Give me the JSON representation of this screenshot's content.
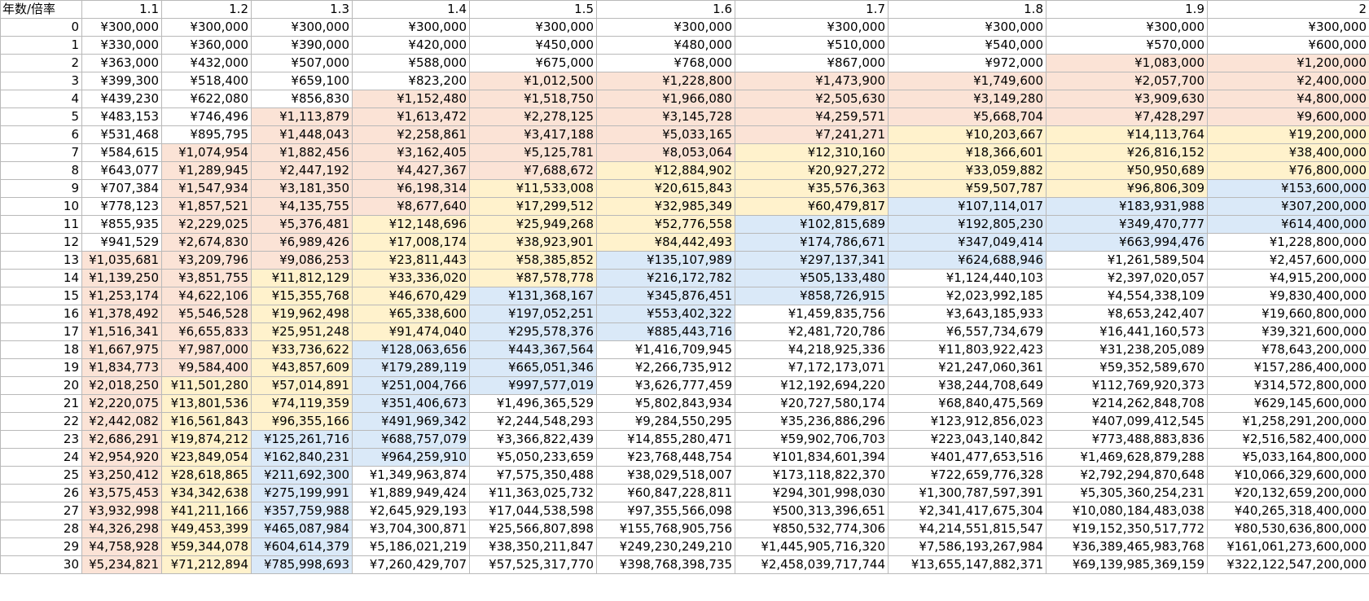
{
  "table": {
    "corner_label": "年数/倍率",
    "column_headers": [
      "1.1",
      "1.2",
      "1.3",
      "1.4",
      "1.5",
      "1.6",
      "1.7",
      "1.8",
      "1.9",
      "2"
    ],
    "highlight_colors": {
      "s": "#fbe3d6",
      "y": "#fff2cc",
      "b": "#dae9f8"
    },
    "rows": [
      {
        "year": "0",
        "cells": [
          "¥300,000",
          "¥300,000",
          "¥300,000",
          "¥300,000",
          "¥300,000",
          "¥300,000",
          "¥300,000",
          "¥300,000",
          "¥300,000",
          "¥300,000"
        ],
        "hl": [
          "",
          "",
          "",
          "",
          "",
          "",
          "",
          "",
          "",
          ""
        ]
      },
      {
        "year": "1",
        "cells": [
          "¥330,000",
          "¥360,000",
          "¥390,000",
          "¥420,000",
          "¥450,000",
          "¥480,000",
          "¥510,000",
          "¥540,000",
          "¥570,000",
          "¥600,000"
        ],
        "hl": [
          "",
          "",
          "",
          "",
          "",
          "",
          "",
          "",
          "",
          ""
        ]
      },
      {
        "year": "2",
        "cells": [
          "¥363,000",
          "¥432,000",
          "¥507,000",
          "¥588,000",
          "¥675,000",
          "¥768,000",
          "¥867,000",
          "¥972,000",
          "¥1,083,000",
          "¥1,200,000"
        ],
        "hl": [
          "",
          "",
          "",
          "",
          "",
          "",
          "",
          "",
          "s",
          "s"
        ]
      },
      {
        "year": "3",
        "cells": [
          "¥399,300",
          "¥518,400",
          "¥659,100",
          "¥823,200",
          "¥1,012,500",
          "¥1,228,800",
          "¥1,473,900",
          "¥1,749,600",
          "¥2,057,700",
          "¥2,400,000"
        ],
        "hl": [
          "",
          "",
          "",
          "",
          "s",
          "s",
          "s",
          "s",
          "s",
          "s"
        ]
      },
      {
        "year": "4",
        "cells": [
          "¥439,230",
          "¥622,080",
          "¥856,830",
          "¥1,152,480",
          "¥1,518,750",
          "¥1,966,080",
          "¥2,505,630",
          "¥3,149,280",
          "¥3,909,630",
          "¥4,800,000"
        ],
        "hl": [
          "",
          "",
          "",
          "s",
          "s",
          "s",
          "s",
          "s",
          "s",
          "s"
        ]
      },
      {
        "year": "5",
        "cells": [
          "¥483,153",
          "¥746,496",
          "¥1,113,879",
          "¥1,613,472",
          "¥2,278,125",
          "¥3,145,728",
          "¥4,259,571",
          "¥5,668,704",
          "¥7,428,297",
          "¥9,600,000"
        ],
        "hl": [
          "",
          "",
          "s",
          "s",
          "s",
          "s",
          "s",
          "s",
          "s",
          "s"
        ]
      },
      {
        "year": "6",
        "cells": [
          "¥531,468",
          "¥895,795",
          "¥1,448,043",
          "¥2,258,861",
          "¥3,417,188",
          "¥5,033,165",
          "¥7,241,271",
          "¥10,203,667",
          "¥14,113,764",
          "¥19,200,000"
        ],
        "hl": [
          "",
          "",
          "s",
          "s",
          "s",
          "s",
          "s",
          "y",
          "y",
          "y"
        ]
      },
      {
        "year": "7",
        "cells": [
          "¥584,615",
          "¥1,074,954",
          "¥1,882,456",
          "¥3,162,405",
          "¥5,125,781",
          "¥8,053,064",
          "¥12,310,160",
          "¥18,366,601",
          "¥26,816,152",
          "¥38,400,000"
        ],
        "hl": [
          "",
          "s",
          "s",
          "s",
          "s",
          "s",
          "y",
          "y",
          "y",
          "y"
        ]
      },
      {
        "year": "8",
        "cells": [
          "¥643,077",
          "¥1,289,945",
          "¥2,447,192",
          "¥4,427,367",
          "¥7,688,672",
          "¥12,884,902",
          "¥20,927,272",
          "¥33,059,882",
          "¥50,950,689",
          "¥76,800,000"
        ],
        "hl": [
          "",
          "s",
          "s",
          "s",
          "s",
          "y",
          "y",
          "y",
          "y",
          "y"
        ]
      },
      {
        "year": "9",
        "cells": [
          "¥707,384",
          "¥1,547,934",
          "¥3,181,350",
          "¥6,198,314",
          "¥11,533,008",
          "¥20,615,843",
          "¥35,576,363",
          "¥59,507,787",
          "¥96,806,309",
          "¥153,600,000"
        ],
        "hl": [
          "",
          "s",
          "s",
          "s",
          "y",
          "y",
          "y",
          "y",
          "y",
          "b"
        ]
      },
      {
        "year": "10",
        "cells": [
          "¥778,123",
          "¥1,857,521",
          "¥4,135,755",
          "¥8,677,640",
          "¥17,299,512",
          "¥32,985,349",
          "¥60,479,817",
          "¥107,114,017",
          "¥183,931,988",
          "¥307,200,000"
        ],
        "hl": [
          "",
          "s",
          "s",
          "s",
          "y",
          "y",
          "y",
          "b",
          "b",
          "b"
        ]
      },
      {
        "year": "11",
        "cells": [
          "¥855,935",
          "¥2,229,025",
          "¥5,376,481",
          "¥12,148,696",
          "¥25,949,268",
          "¥52,776,558",
          "¥102,815,689",
          "¥192,805,230",
          "¥349,470,777",
          "¥614,400,000"
        ],
        "hl": [
          "",
          "s",
          "s",
          "y",
          "y",
          "y",
          "b",
          "b",
          "b",
          "b"
        ]
      },
      {
        "year": "12",
        "cells": [
          "¥941,529",
          "¥2,674,830",
          "¥6,989,426",
          "¥17,008,174",
          "¥38,923,901",
          "¥84,442,493",
          "¥174,786,671",
          "¥347,049,414",
          "¥663,994,476",
          "¥1,228,800,000"
        ],
        "hl": [
          "",
          "s",
          "s",
          "y",
          "y",
          "y",
          "b",
          "b",
          "b",
          ""
        ]
      },
      {
        "year": "13",
        "cells": [
          "¥1,035,681",
          "¥3,209,796",
          "¥9,086,253",
          "¥23,811,443",
          "¥58,385,852",
          "¥135,107,989",
          "¥297,137,341",
          "¥624,688,946",
          "¥1,261,589,504",
          "¥2,457,600,000"
        ],
        "hl": [
          "s",
          "s",
          "s",
          "y",
          "y",
          "b",
          "b",
          "b",
          "",
          ""
        ]
      },
      {
        "year": "14",
        "cells": [
          "¥1,139,250",
          "¥3,851,755",
          "¥11,812,129",
          "¥33,336,020",
          "¥87,578,778",
          "¥216,172,782",
          "¥505,133,480",
          "¥1,124,440,103",
          "¥2,397,020,057",
          "¥4,915,200,000"
        ],
        "hl": [
          "s",
          "s",
          "y",
          "y",
          "y",
          "b",
          "b",
          "",
          "",
          ""
        ]
      },
      {
        "year": "15",
        "cells": [
          "¥1,253,174",
          "¥4,622,106",
          "¥15,355,768",
          "¥46,670,429",
          "¥131,368,167",
          "¥345,876,451",
          "¥858,726,915",
          "¥2,023,992,185",
          "¥4,554,338,109",
          "¥9,830,400,000"
        ],
        "hl": [
          "s",
          "s",
          "y",
          "y",
          "b",
          "b",
          "b",
          "",
          "",
          ""
        ]
      },
      {
        "year": "16",
        "cells": [
          "¥1,378,492",
          "¥5,546,528",
          "¥19,962,498",
          "¥65,338,600",
          "¥197,052,251",
          "¥553,402,322",
          "¥1,459,835,756",
          "¥3,643,185,933",
          "¥8,653,242,407",
          "¥19,660,800,000"
        ],
        "hl": [
          "s",
          "s",
          "y",
          "y",
          "b",
          "b",
          "",
          "",
          "",
          ""
        ]
      },
      {
        "year": "17",
        "cells": [
          "¥1,516,341",
          "¥6,655,833",
          "¥25,951,248",
          "¥91,474,040",
          "¥295,578,376",
          "¥885,443,716",
          "¥2,481,720,786",
          "¥6,557,734,679",
          "¥16,441,160,573",
          "¥39,321,600,000"
        ],
        "hl": [
          "s",
          "s",
          "y",
          "y",
          "b",
          "b",
          "",
          "",
          "",
          ""
        ]
      },
      {
        "year": "18",
        "cells": [
          "¥1,667,975",
          "¥7,987,000",
          "¥33,736,622",
          "¥128,063,656",
          "¥443,367,564",
          "¥1,416,709,945",
          "¥4,218,925,336",
          "¥11,803,922,423",
          "¥31,238,205,089",
          "¥78,643,200,000"
        ],
        "hl": [
          "s",
          "s",
          "y",
          "b",
          "b",
          "",
          "",
          "",
          "",
          ""
        ]
      },
      {
        "year": "19",
        "cells": [
          "¥1,834,773",
          "¥9,584,400",
          "¥43,857,609",
          "¥179,289,119",
          "¥665,051,346",
          "¥2,266,735,912",
          "¥7,172,173,071",
          "¥21,247,060,361",
          "¥59,352,589,670",
          "¥157,286,400,000"
        ],
        "hl": [
          "s",
          "s",
          "y",
          "b",
          "b",
          "",
          "",
          "",
          "",
          ""
        ]
      },
      {
        "year": "20",
        "cells": [
          "¥2,018,250",
          "¥11,501,280",
          "¥57,014,891",
          "¥251,004,766",
          "¥997,577,019",
          "¥3,626,777,459",
          "¥12,192,694,220",
          "¥38,244,708,649",
          "¥112,769,920,373",
          "¥314,572,800,000"
        ],
        "hl": [
          "s",
          "y",
          "y",
          "b",
          "b",
          "",
          "",
          "",
          "",
          ""
        ]
      },
      {
        "year": "21",
        "cells": [
          "¥2,220,075",
          "¥13,801,536",
          "¥74,119,359",
          "¥351,406,673",
          "¥1,496,365,529",
          "¥5,802,843,934",
          "¥20,727,580,174",
          "¥68,840,475,569",
          "¥214,262,848,708",
          "¥629,145,600,000"
        ],
        "hl": [
          "s",
          "y",
          "y",
          "b",
          "",
          "",
          "",
          "",
          "",
          ""
        ]
      },
      {
        "year": "22",
        "cells": [
          "¥2,442,082",
          "¥16,561,843",
          "¥96,355,166",
          "¥491,969,342",
          "¥2,244,548,293",
          "¥9,284,550,295",
          "¥35,236,886,296",
          "¥123,912,856,023",
          "¥407,099,412,545",
          "¥1,258,291,200,000"
        ],
        "hl": [
          "s",
          "y",
          "y",
          "b",
          "",
          "",
          "",
          "",
          "",
          ""
        ]
      },
      {
        "year": "23",
        "cells": [
          "¥2,686,291",
          "¥19,874,212",
          "¥125,261,716",
          "¥688,757,079",
          "¥3,366,822,439",
          "¥14,855,280,471",
          "¥59,902,706,703",
          "¥223,043,140,842",
          "¥773,488,883,836",
          "¥2,516,582,400,000"
        ],
        "hl": [
          "s",
          "y",
          "b",
          "b",
          "",
          "",
          "",
          "",
          "",
          ""
        ]
      },
      {
        "year": "24",
        "cells": [
          "¥2,954,920",
          "¥23,849,054",
          "¥162,840,231",
          "¥964,259,910",
          "¥5,050,233,659",
          "¥23,768,448,754",
          "¥101,834,601,394",
          "¥401,477,653,516",
          "¥1,469,628,879,288",
          "¥5,033,164,800,000"
        ],
        "hl": [
          "s",
          "y",
          "b",
          "b",
          "",
          "",
          "",
          "",
          "",
          ""
        ]
      },
      {
        "year": "25",
        "cells": [
          "¥3,250,412",
          "¥28,618,865",
          "¥211,692,300",
          "¥1,349,963,874",
          "¥7,575,350,488",
          "¥38,029,518,007",
          "¥173,118,822,370",
          "¥722,659,776,328",
          "¥2,792,294,870,648",
          "¥10,066,329,600,000"
        ],
        "hl": [
          "s",
          "y",
          "b",
          "",
          "",
          "",
          "",
          "",
          "",
          ""
        ]
      },
      {
        "year": "26",
        "cells": [
          "¥3,575,453",
          "¥34,342,638",
          "¥275,199,991",
          "¥1,889,949,424",
          "¥11,363,025,732",
          "¥60,847,228,811",
          "¥294,301,998,030",
          "¥1,300,787,597,391",
          "¥5,305,360,254,231",
          "¥20,132,659,200,000"
        ],
        "hl": [
          "s",
          "y",
          "b",
          "",
          "",
          "",
          "",
          "",
          "",
          ""
        ]
      },
      {
        "year": "27",
        "cells": [
          "¥3,932,998",
          "¥41,211,166",
          "¥357,759,988",
          "¥2,645,929,193",
          "¥17,044,538,598",
          "¥97,355,566,098",
          "¥500,313,396,651",
          "¥2,341,417,675,304",
          "¥10,080,184,483,038",
          "¥40,265,318,400,000"
        ],
        "hl": [
          "s",
          "y",
          "b",
          "",
          "",
          "",
          "",
          "",
          "",
          ""
        ]
      },
      {
        "year": "28",
        "cells": [
          "¥4,326,298",
          "¥49,453,399",
          "¥465,087,984",
          "¥3,704,300,871",
          "¥25,566,807,898",
          "¥155,768,905,756",
          "¥850,532,774,306",
          "¥4,214,551,815,547",
          "¥19,152,350,517,772",
          "¥80,530,636,800,000"
        ],
        "hl": [
          "s",
          "y",
          "b",
          "",
          "",
          "",
          "",
          "",
          "",
          ""
        ]
      },
      {
        "year": "29",
        "cells": [
          "¥4,758,928",
          "¥59,344,078",
          "¥604,614,379",
          "¥5,186,021,219",
          "¥38,350,211,847",
          "¥249,230,249,210",
          "¥1,445,905,716,320",
          "¥7,586,193,267,984",
          "¥36,389,465,983,768",
          "¥161,061,273,600,000"
        ],
        "hl": [
          "s",
          "y",
          "b",
          "",
          "",
          "",
          "",
          "",
          "",
          ""
        ]
      },
      {
        "year": "30",
        "cells": [
          "¥5,234,821",
          "¥71,212,894",
          "¥785,998,693",
          "¥7,260,429,707",
          "¥57,525,317,770",
          "¥398,768,398,735",
          "¥2,458,039,717,744",
          "¥13,655,147,882,371",
          "¥69,139,985,369,159",
          "¥322,122,547,200,000"
        ],
        "hl": [
          "s",
          "y",
          "b",
          "",
          "",
          "",
          "",
          "",
          "",
          ""
        ]
      }
    ]
  }
}
